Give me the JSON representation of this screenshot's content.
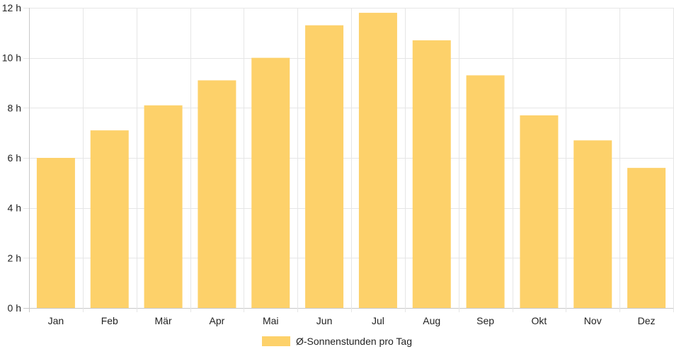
{
  "chart_data": {
    "type": "bar",
    "categories": [
      "Jan",
      "Feb",
      "Mär",
      "Apr",
      "Mai",
      "Jun",
      "Jul",
      "Aug",
      "Sep",
      "Okt",
      "Nov",
      "Dez"
    ],
    "series": [
      {
        "name": "Ø-Sonnenstunden pro Tag",
        "values": [
          6.0,
          7.1,
          8.1,
          9.1,
          10.0,
          11.3,
          11.8,
          10.7,
          9.3,
          7.7,
          6.7,
          5.6
        ],
        "color": "#fdd16a"
      }
    ],
    "y_ticks": [
      "0 h",
      "2 h",
      "4 h",
      "6 h",
      "8 h",
      "10 h",
      "12 h"
    ],
    "ylim": [
      0,
      12
    ],
    "grid": true,
    "legend_position": "bottom"
  }
}
